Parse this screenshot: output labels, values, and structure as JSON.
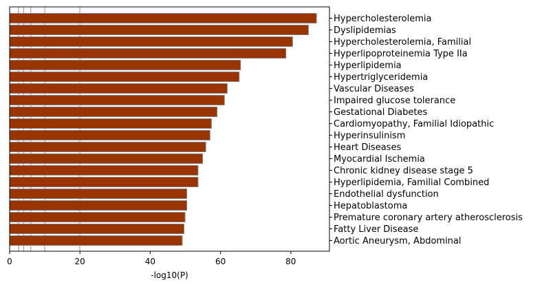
{
  "chart_data": {
    "type": "bar",
    "orientation": "horizontal",
    "title": "",
    "xlabel": "-log10(P)",
    "ylabel": "",
    "xlim": [
      0,
      91
    ],
    "xticks": [
      0,
      20,
      40,
      60,
      80
    ],
    "xtick_labels": [
      "0",
      "20",
      "40",
      "60",
      "80"
    ],
    "reference_lines": [
      2.5,
      4,
      6,
      10,
      20
    ],
    "grid": false,
    "bar_color": "#993300",
    "bar_edge_color": "#808080",
    "categories": [
      "Hypercholesterolemia",
      "Dyslipidemias",
      "Hypercholesterolemia, Familial",
      "Hyperlipoproteinemia Type IIa",
      "Hyperlipidemia",
      "Hypertriglyceridemia",
      "Vascular Diseases",
      "Impaired glucose tolerance",
      "Gestational Diabetes",
      "Cardiomyopathy, Familial Idiopathic",
      "Hyperinsulinism",
      "Heart Diseases",
      "Myocardial Ischemia",
      "Chronic kidney disease stage 5",
      "Hyperlipidemia, Familial Combined",
      "Endothelial dysfunction",
      "Hepatoblastoma",
      "Premature coronary artery atherosclerosis",
      "Fatty Liver Disease",
      "Aortic Aneurysm, Abdominal"
    ],
    "values": [
      87.3,
      85.0,
      80.5,
      78.6,
      65.7,
      65.3,
      61.9,
      61.1,
      59.0,
      57.4,
      57.0,
      55.8,
      54.9,
      53.6,
      53.6,
      50.4,
      50.4,
      49.9,
      49.6,
      49.1
    ]
  }
}
